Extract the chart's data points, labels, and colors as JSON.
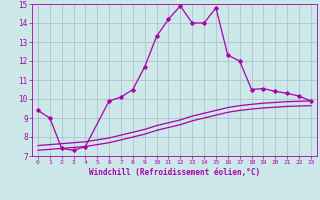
{
  "title": "",
  "xlabel": "Windchill (Refroidissement éolien,°C)",
  "background_color": "#cce8e8",
  "grid_color": "#aabbcc",
  "line_color": "#aa00aa",
  "xlim": [
    -0.5,
    23.5
  ],
  "ylim": [
    7,
    15
  ],
  "yticks": [
    7,
    8,
    9,
    10,
    11,
    12,
    13,
    14,
    15
  ],
  "xticks": [
    0,
    1,
    2,
    3,
    4,
    5,
    6,
    7,
    8,
    9,
    10,
    11,
    12,
    13,
    14,
    15,
    16,
    17,
    18,
    19,
    20,
    21,
    22,
    23
  ],
  "line1_x": [
    0,
    1,
    2,
    3,
    4,
    6,
    7,
    8,
    9,
    10,
    11,
    12,
    13,
    14,
    15,
    16,
    17,
    18,
    19,
    20,
    21,
    22,
    23
  ],
  "line1_y": [
    9.4,
    9.0,
    7.4,
    7.3,
    7.5,
    9.9,
    10.1,
    10.5,
    11.7,
    13.3,
    14.2,
    14.9,
    14.0,
    14.0,
    14.8,
    12.3,
    12.0,
    10.5,
    10.55,
    10.4,
    10.3,
    10.15,
    9.9
  ],
  "line2_x": [
    0,
    1,
    2,
    3,
    4,
    5,
    6,
    7,
    8,
    9,
    10,
    11,
    12,
    13,
    14,
    15,
    16,
    17,
    18,
    19,
    20,
    21,
    22,
    23
  ],
  "line2_y": [
    7.55,
    7.6,
    7.65,
    7.7,
    7.75,
    7.85,
    7.95,
    8.1,
    8.25,
    8.4,
    8.6,
    8.75,
    8.9,
    9.1,
    9.25,
    9.4,
    9.55,
    9.65,
    9.72,
    9.78,
    9.82,
    9.86,
    9.88,
    9.9
  ],
  "line3_x": [
    0,
    1,
    2,
    3,
    4,
    5,
    6,
    7,
    8,
    9,
    10,
    11,
    12,
    13,
    14,
    15,
    16,
    17,
    18,
    19,
    20,
    21,
    22,
    23
  ],
  "line3_y": [
    7.3,
    7.35,
    7.4,
    7.45,
    7.5,
    7.6,
    7.7,
    7.85,
    8.0,
    8.15,
    8.35,
    8.5,
    8.65,
    8.85,
    9.0,
    9.15,
    9.3,
    9.4,
    9.47,
    9.53,
    9.57,
    9.61,
    9.63,
    9.65
  ]
}
